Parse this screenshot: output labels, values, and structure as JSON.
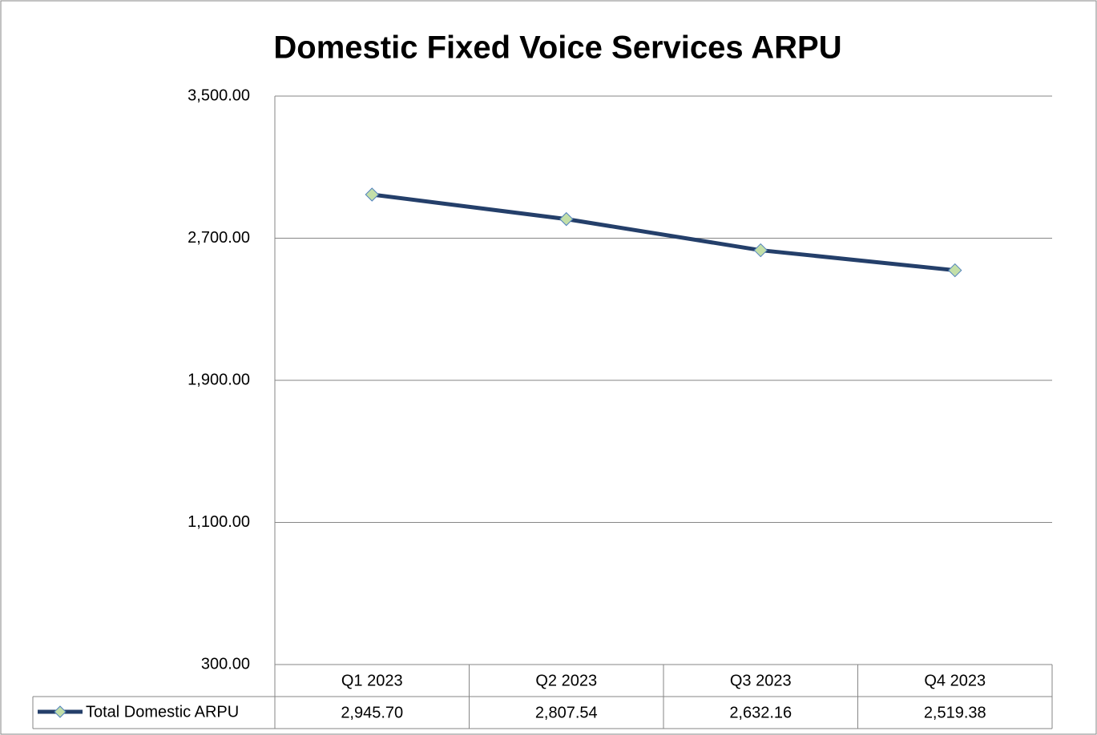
{
  "chart_data": {
    "type": "line",
    "title": "Domestic Fixed Voice Services ARPU",
    "categories": [
      "Q1 2023",
      "Q2 2023",
      "Q3 2023",
      "Q4 2023"
    ],
    "series": [
      {
        "name": "Total Domestic ARPU",
        "color": "#243f6a",
        "marker_color": "#c3dfa8",
        "values": [
          2945.7,
          2807.54,
          2632.16,
          2519.38
        ],
        "value_labels": [
          "2,945.70",
          "2,807.54",
          "2,632.16",
          "2,519.38"
        ]
      }
    ],
    "ylim": [
      300,
      3500
    ],
    "yticks": [
      {
        "value": 300,
        "label": "300.00"
      },
      {
        "value": 1100,
        "label": "1,100.00"
      },
      {
        "value": 1900,
        "label": "1,900.00"
      },
      {
        "value": 2700,
        "label": "2,700.00"
      },
      {
        "value": 3500,
        "label": "3,500.00"
      }
    ],
    "grid": true
  }
}
